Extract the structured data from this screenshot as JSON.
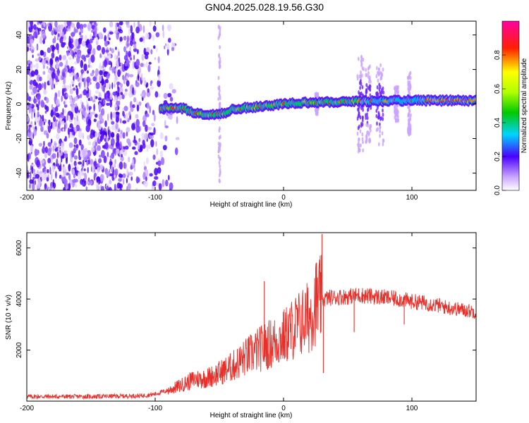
{
  "title": "GN04.2025.028.19.56.G30",
  "chart_data": [
    {
      "type": "heatmap",
      "name": "spectrogram",
      "xlabel": "Height of straight line (km)",
      "ylabel": "Frequency (Hz)",
      "xlim": [
        -200,
        150
      ],
      "ylim": [
        -50,
        48
      ],
      "xticks": [
        -200,
        -100,
        0,
        100
      ],
      "yticks": [
        -40,
        -20,
        0,
        20,
        40
      ],
      "colorbar": {
        "label": "Normalized spectral amplitude",
        "range": [
          0,
          1
        ],
        "ticks": [
          0.0,
          0.2,
          0.4,
          0.6,
          0.8
        ]
      },
      "notes": "Noisy purple speckle for heights below about -90 km; a narrow high-amplitude band near 0 Hz from about -95 km to 150 km, bulging to about -4 Hz between -75 and -40 km and rising to about +3 Hz after 0 km; broadband vertical spikes near 26 km, 60-68 km, 73-78 km and 98 km."
    },
    {
      "type": "line",
      "name": "snr",
      "xlabel": "Height of straight line (km)",
      "ylabel": "SNR (10 * v/v)",
      "xlim": [
        -200,
        150
      ],
      "ylim": [
        0,
        6600
      ],
      "xticks": [
        -200,
        -100,
        0,
        100
      ],
      "yticks": [
        2000,
        4000,
        6000
      ],
      "color": "#e8302a",
      "envelope": {
        "x": [
          -200,
          -150,
          -110,
          -100,
          -90,
          -80,
          -70,
          -60,
          -50,
          -40,
          -30,
          -20,
          -10,
          0,
          10,
          20,
          25,
          35,
          50,
          60,
          70,
          80,
          90,
          100,
          110,
          120,
          130,
          150
        ],
        "y": [
          180,
          180,
          210,
          280,
          420,
          620,
          850,
          900,
          1100,
          1350,
          1700,
          2000,
          2250,
          2500,
          2950,
          3300,
          3900,
          4050,
          4100,
          4150,
          4100,
          4050,
          4000,
          3900,
          3850,
          3750,
          3650,
          3500
        ]
      },
      "spikes": [
        {
          "x": -15,
          "y": 4700
        },
        {
          "x": 28,
          "y": 5100
        },
        {
          "x": 30,
          "y": 6550
        },
        {
          "x": 31,
          "y": 1100
        },
        {
          "x": 55,
          "y": 2700
        },
        {
          "x": 94,
          "y": 3000
        }
      ]
    }
  ]
}
